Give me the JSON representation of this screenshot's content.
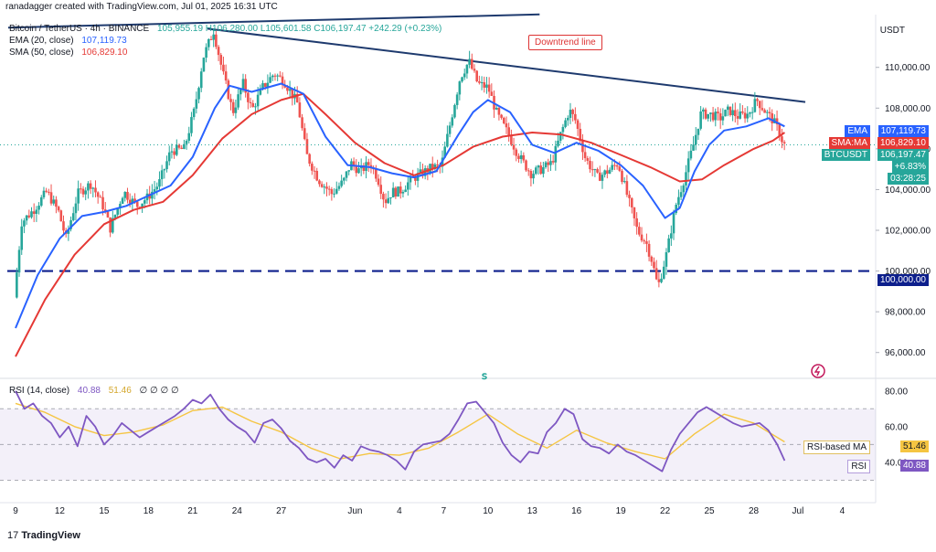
{
  "header": {
    "credit": "ranadagger created with TradingView.com, Jul 01, 2025 16:31 UTC",
    "ohlc": "105,955.19  H106,280.00  L105,601.58  C106,197.47  +242.29 (+0.23%)",
    "symbol_line": "Bitcoin / TetherUS · 4h · BINANCE"
  },
  "legend": {
    "ema_label": "EMA (20, close)",
    "ema_value": "107,119.73",
    "sma_label": "SMA (50, close)",
    "sma_value": "106,829.10",
    "rsi_label": "RSI (14, close)",
    "rsi_value": "40.88",
    "rsi_ma_value": "51.46",
    "rsi_extra": "∅ ∅ ∅ ∅"
  },
  "currency": "USDT",
  "annotation": "Downtrend line",
  "price_labels": {
    "ema_tag": "EMA",
    "ema_val": "107,119.73",
    "sma_tag": "SMA:MA",
    "sma_val": "106,829.10",
    "sym_tag": "BTCUSDT",
    "last": "106,197.47",
    "change": "+6.83%",
    "countdown": "03:28:25",
    "support": "100,000.00",
    "rsi_ma_tag": "RSI-based MA",
    "rsi_ma_val": "51.46",
    "rsi_tag": "RSI",
    "rsi_val": "40.88"
  },
  "footer": {
    "brand": "TradingView"
  },
  "colors": {
    "up": "#26a69a",
    "down": "#ef5350",
    "ema": "#2962ff",
    "sma": "#e53935",
    "trend": "#1e3a6e",
    "rsi": "#7e57c2",
    "rsi_ma": "#f5c542",
    "support": "#0d1f8c"
  },
  "chart_data": {
    "type": "candlestick",
    "interval": "4h",
    "price_axis": {
      "ylim": [
        95000,
        112500
      ],
      "ticks": [
        96000,
        98000,
        100000,
        102000,
        104000,
        106000,
        108000,
        110000
      ]
    },
    "x_ticks": [
      "9",
      "12",
      "15",
      "18",
      "21",
      "24",
      "27",
      "Jun",
      "4",
      "7",
      "10",
      "13",
      "16",
      "19",
      "22",
      "25",
      "28",
      "Jul",
      "4"
    ],
    "price_path": [
      [
        9,
        98700
      ],
      [
        9.5,
        102400
      ],
      [
        10.3,
        103000
      ],
      [
        11.2,
        103900
      ],
      [
        12,
        102900
      ],
      [
        12.5,
        101600
      ],
      [
        13.3,
        103800
      ],
      [
        14.2,
        104300
      ],
      [
        15,
        103200
      ],
      [
        15.5,
        102100
      ],
      [
        16.4,
        103900
      ],
      [
        17.3,
        103200
      ],
      [
        18,
        103600
      ],
      [
        18.8,
        104300
      ],
      [
        19.6,
        105900
      ],
      [
        20.5,
        106000
      ],
      [
        21.2,
        107900
      ],
      [
        21.8,
        110500
      ],
      [
        22.5,
        111800
      ],
      [
        23.1,
        109800
      ],
      [
        23.8,
        107800
      ],
      [
        24.5,
        109200
      ],
      [
        25.1,
        107900
      ],
      [
        25.8,
        109000
      ],
      [
        26.6,
        109700
      ],
      [
        27.3,
        109300
      ],
      [
        28.2,
        108200
      ],
      [
        28.8,
        105700
      ],
      [
        29.6,
        104500
      ],
      [
        30.5,
        103800
      ],
      [
        31.3,
        104400
      ],
      [
        31.8,
        105300
      ],
      [
        32.4,
        104900
      ],
      [
        33.1,
        105300
      ],
      [
        33.6,
        104600
      ],
      [
        34.1,
        103400
      ],
      [
        34.6,
        103900
      ],
      [
        35.1,
        103900
      ],
      [
        35.9,
        104500
      ],
      [
        36.6,
        104800
      ],
      [
        37.3,
        105100
      ],
      [
        37.9,
        105100
      ],
      [
        38.6,
        107500
      ],
      [
        39.2,
        109500
      ],
      [
        39.8,
        110300
      ],
      [
        40.4,
        109200
      ],
      [
        41.1,
        109000
      ],
      [
        41.7,
        107700
      ],
      [
        42.4,
        106800
      ],
      [
        43,
        105900
      ],
      [
        43.4,
        105400
      ],
      [
        44,
        104800
      ],
      [
        44.7,
        105000
      ],
      [
        45.4,
        105300
      ],
      [
        46,
        106700
      ],
      [
        46.6,
        107900
      ],
      [
        47,
        107400
      ],
      [
        47.7,
        105500
      ],
      [
        48.5,
        104600
      ],
      [
        49.2,
        104900
      ],
      [
        49.9,
        105300
      ],
      [
        50.6,
        103500
      ],
      [
        51.2,
        102000
      ],
      [
        51.8,
        101400
      ],
      [
        52.2,
        100500
      ],
      [
        52.6,
        99200
      ],
      [
        53.2,
        100900
      ],
      [
        53.8,
        103200
      ],
      [
        54.4,
        104600
      ],
      [
        55,
        106200
      ],
      [
        55.5,
        107700
      ],
      [
        56.1,
        107700
      ],
      [
        56.8,
        107500
      ],
      [
        57.4,
        107900
      ],
      [
        58,
        107600
      ],
      [
        58.7,
        107700
      ],
      [
        59.3,
        108400
      ],
      [
        59.9,
        107800
      ],
      [
        60.4,
        107400
      ],
      [
        60.9,
        106700
      ],
      [
        61.1,
        106200
      ]
    ],
    "support_level": 100000,
    "downtrend_line": [
      [
        22,
        111900
      ],
      [
        62.5,
        108300
      ]
    ],
    "upper_line": [
      [
        8.5,
        111950
      ],
      [
        44.5,
        112600
      ]
    ],
    "ema20_path": [
      [
        9,
        97200
      ],
      [
        10.5,
        99800
      ],
      [
        12,
        101600
      ],
      [
        13.5,
        102700
      ],
      [
        15,
        102900
      ],
      [
        16.5,
        103200
      ],
      [
        18,
        103700
      ],
      [
        19.5,
        104200
      ],
      [
        21,
        105600
      ],
      [
        22.5,
        108000
      ],
      [
        23.5,
        109100
      ],
      [
        25,
        108800
      ],
      [
        27,
        109200
      ],
      [
        28.5,
        108700
      ],
      [
        30,
        106600
      ],
      [
        31.5,
        105200
      ],
      [
        33,
        105100
      ],
      [
        34.5,
        104800
      ],
      [
        36,
        104600
      ],
      [
        37.5,
        104900
      ],
      [
        39,
        106700
      ],
      [
        40,
        107800
      ],
      [
        41,
        108400
      ],
      [
        42.5,
        107800
      ],
      [
        44,
        106200
      ],
      [
        45.5,
        105800
      ],
      [
        47,
        106300
      ],
      [
        48.5,
        105900
      ],
      [
        50,
        105200
      ],
      [
        51.5,
        104200
      ],
      [
        53,
        102600
      ],
      [
        54,
        103100
      ],
      [
        55,
        104900
      ],
      [
        56,
        106200
      ],
      [
        57,
        106900
      ],
      [
        58.5,
        107100
      ],
      [
        60,
        107500
      ],
      [
        61.1,
        107100
      ]
    ],
    "sma50_path": [
      [
        9,
        95800
      ],
      [
        11,
        98600
      ],
      [
        13,
        100800
      ],
      [
        15,
        102300
      ],
      [
        17,
        103000
      ],
      [
        19,
        103400
      ],
      [
        21,
        104700
      ],
      [
        23,
        106500
      ],
      [
        25,
        107700
      ],
      [
        27,
        108400
      ],
      [
        28.5,
        108700
      ],
      [
        30,
        107700
      ],
      [
        32,
        106300
      ],
      [
        34,
        105300
      ],
      [
        36,
        104700
      ],
      [
        38,
        105200
      ],
      [
        40,
        106100
      ],
      [
        42,
        106600
      ],
      [
        44,
        106800
      ],
      [
        46,
        106700
      ],
      [
        48,
        106300
      ],
      [
        50,
        105700
      ],
      [
        52,
        105100
      ],
      [
        54,
        104400
      ],
      [
        55.5,
        104500
      ],
      [
        57,
        105200
      ],
      [
        59,
        106000
      ],
      [
        60.3,
        106400
      ],
      [
        61.1,
        106800
      ]
    ],
    "rsi": {
      "ylim": [
        20,
        85
      ],
      "ticks": [
        40,
        60,
        80
      ],
      "upper_band": 70,
      "lower_band": 30,
      "mid": 50,
      "series": [
        [
          9,
          80
        ],
        [
          9.6,
          70
        ],
        [
          10.2,
          73
        ],
        [
          10.8,
          66
        ],
        [
          11.4,
          62
        ],
        [
          12,
          54
        ],
        [
          12.6,
          60
        ],
        [
          13.2,
          49
        ],
        [
          13.8,
          66
        ],
        [
          14.4,
          60
        ],
        [
          15,
          50
        ],
        [
          15.6,
          55
        ],
        [
          16.2,
          62
        ],
        [
          16.8,
          58
        ],
        [
          17.4,
          54
        ],
        [
          18,
          57
        ],
        [
          18.6,
          60
        ],
        [
          19.2,
          63
        ],
        [
          19.8,
          66
        ],
        [
          20.4,
          70
        ],
        [
          21,
          75
        ],
        [
          21.6,
          73
        ],
        [
          22.2,
          78
        ],
        [
          22.8,
          70
        ],
        [
          23.4,
          64
        ],
        [
          24,
          60
        ],
        [
          24.6,
          57
        ],
        [
          25.2,
          51
        ],
        [
          25.8,
          62
        ],
        [
          26.4,
          64
        ],
        [
          27,
          59
        ],
        [
          27.6,
          52
        ],
        [
          28.2,
          48
        ],
        [
          28.8,
          42
        ],
        [
          29.4,
          40
        ],
        [
          30,
          42
        ],
        [
          30.6,
          37
        ],
        [
          31.2,
          44
        ],
        [
          31.8,
          41
        ],
        [
          32.4,
          49
        ],
        [
          33,
          47
        ],
        [
          33.6,
          46
        ],
        [
          34.2,
          44
        ],
        [
          34.8,
          41
        ],
        [
          35.4,
          36
        ],
        [
          36,
          46
        ],
        [
          36.6,
          50
        ],
        [
          37.2,
          51
        ],
        [
          37.8,
          52
        ],
        [
          38.4,
          56
        ],
        [
          39,
          64
        ],
        [
          39.6,
          73
        ],
        [
          40.2,
          74
        ],
        [
          40.8,
          68
        ],
        [
          41.4,
          62
        ],
        [
          42,
          51
        ],
        [
          42.6,
          44
        ],
        [
          43.2,
          40
        ],
        [
          43.8,
          46
        ],
        [
          44.4,
          45
        ],
        [
          45,
          57
        ],
        [
          45.6,
          62
        ],
        [
          46.2,
          70
        ],
        [
          46.8,
          67
        ],
        [
          47.4,
          53
        ],
        [
          48,
          49
        ],
        [
          48.6,
          48
        ],
        [
          49.2,
          45
        ],
        [
          49.8,
          50
        ],
        [
          50.4,
          46
        ],
        [
          51,
          44
        ],
        [
          51.6,
          41
        ],
        [
          52.2,
          38
        ],
        [
          52.8,
          35
        ],
        [
          53.4,
          47
        ],
        [
          54,
          56
        ],
        [
          54.6,
          62
        ],
        [
          55.2,
          68
        ],
        [
          55.8,
          71
        ],
        [
          56.4,
          68
        ],
        [
          57,
          65
        ],
        [
          57.6,
          62
        ],
        [
          58.2,
          60
        ],
        [
          58.8,
          61
        ],
        [
          59.4,
          62
        ],
        [
          60,
          58
        ],
        [
          60.6,
          50
        ],
        [
          61.1,
          41
        ]
      ],
      "ma_series": [
        [
          9,
          73
        ],
        [
          11,
          68
        ],
        [
          13,
          60
        ],
        [
          15,
          55
        ],
        [
          17,
          57
        ],
        [
          19,
          61
        ],
        [
          21,
          69
        ],
        [
          23,
          71
        ],
        [
          25,
          63
        ],
        [
          27,
          57
        ],
        [
          29,
          48
        ],
        [
          31,
          42
        ],
        [
          33,
          45
        ],
        [
          35,
          44
        ],
        [
          37,
          48
        ],
        [
          39,
          57
        ],
        [
          41,
          67
        ],
        [
          43,
          56
        ],
        [
          45,
          48
        ],
        [
          47,
          58
        ],
        [
          49,
          51
        ],
        [
          51,
          46
        ],
        [
          53,
          42
        ],
        [
          55,
          56
        ],
        [
          57,
          67
        ],
        [
          59,
          62
        ],
        [
          61.1,
          51.5
        ]
      ]
    }
  }
}
